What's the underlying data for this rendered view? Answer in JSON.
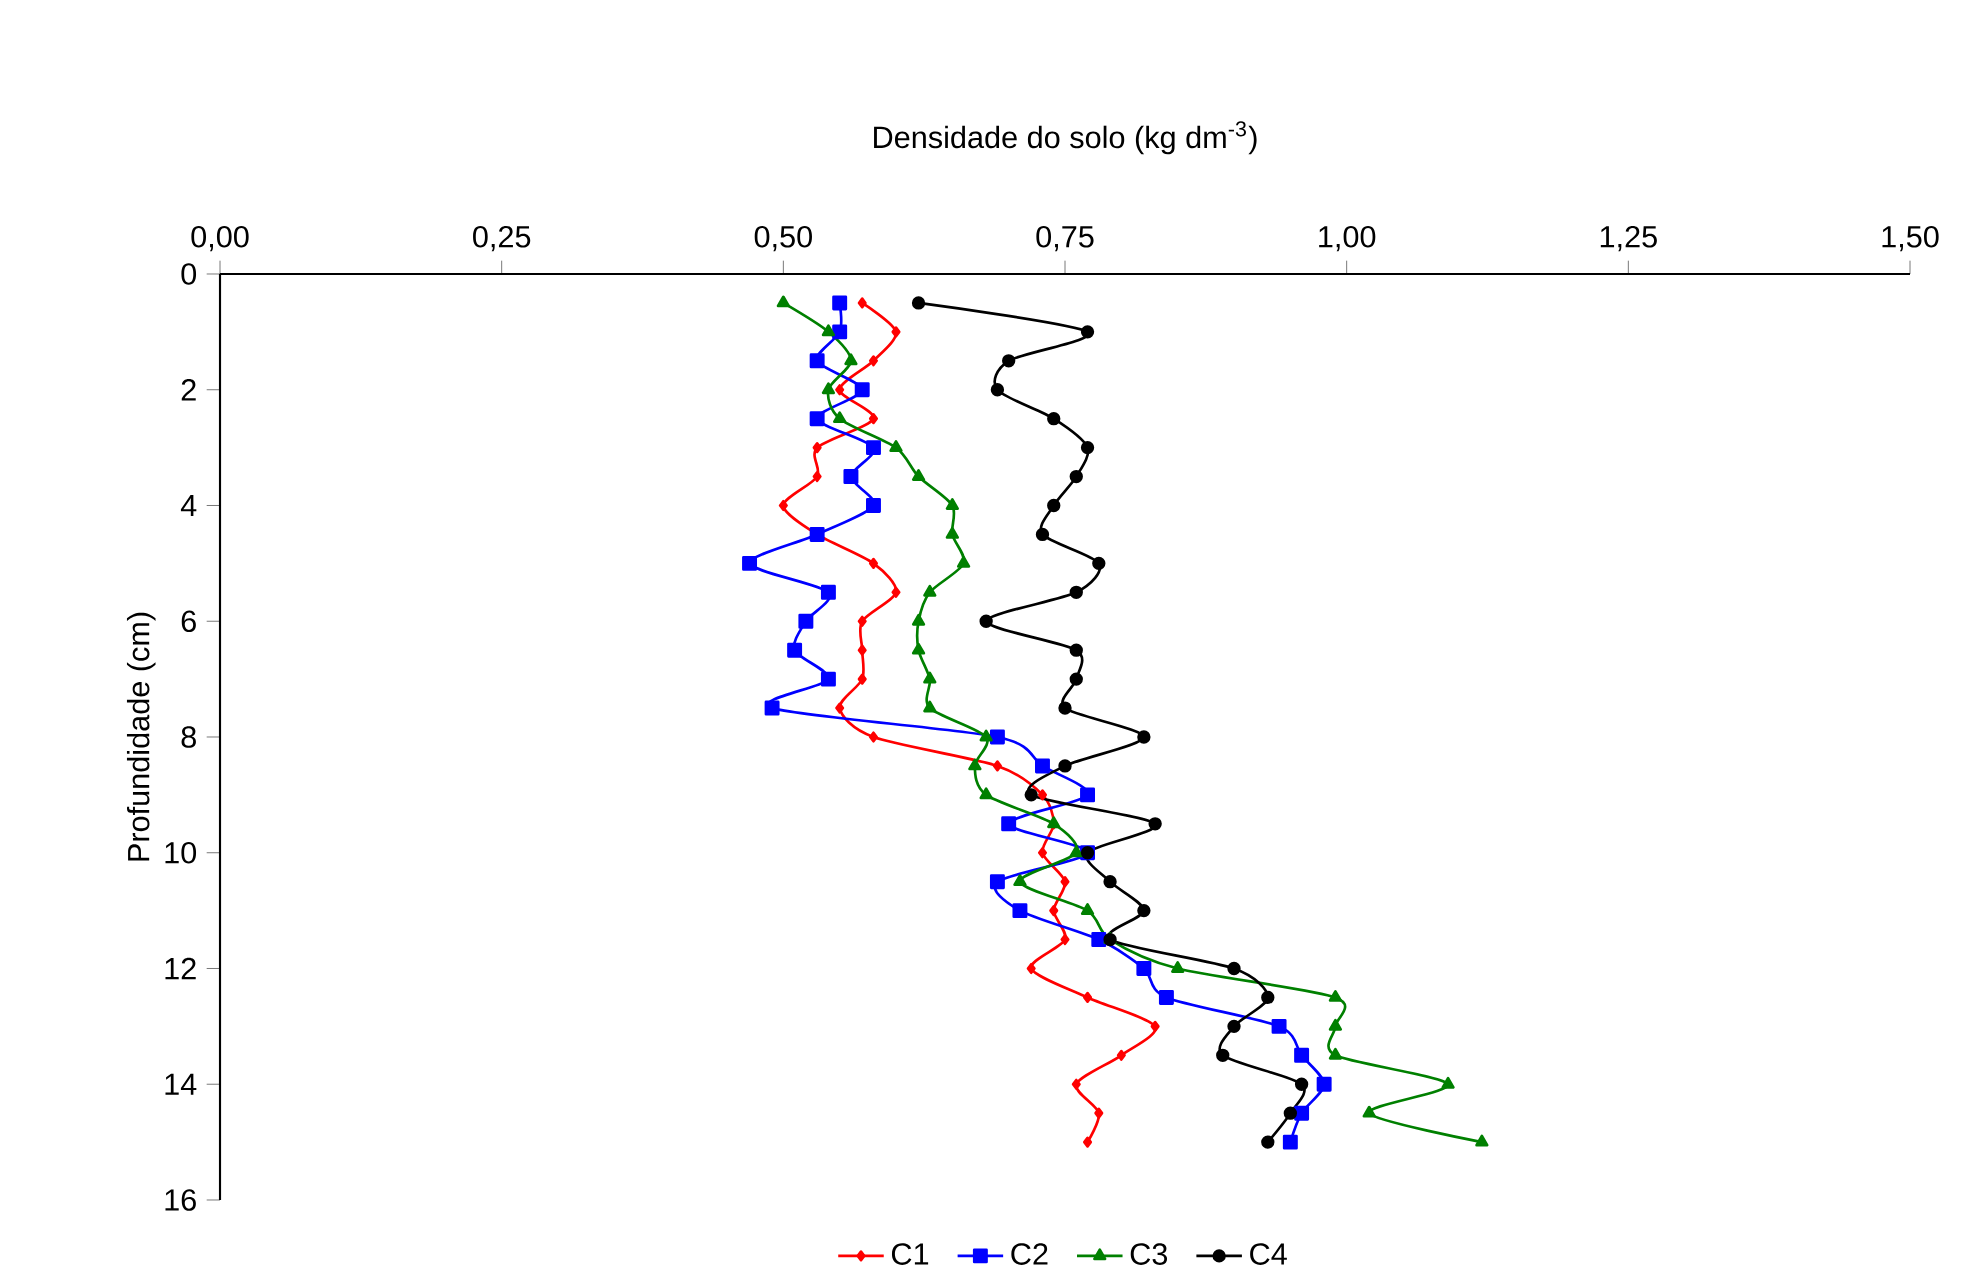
{
  "chart_data": {
    "type": "line",
    "xlabel": "Densidade do solo (kg dm$^{-3}$)",
    "ylabel": "Profundidade (cm)",
    "xlim": [
      0,
      1.5
    ],
    "ylim": [
      16,
      0
    ],
    "xticks": [
      {
        "value": 0,
        "label": "0,00"
      },
      {
        "value": 0.25,
        "label": "0,25"
      },
      {
        "value": 0.5,
        "label": "0,50"
      },
      {
        "value": 0.75,
        "label": "0,75"
      },
      {
        "value": 1,
        "label": "1,00"
      },
      {
        "value": 1.25,
        "label": "1,25"
      },
      {
        "value": 1.5,
        "label": "1,50"
      }
    ],
    "yticks": [
      0,
      2,
      4,
      6,
      8,
      10,
      12,
      14,
      16
    ],
    "legend": "bottom",
    "series": [
      {
        "name": "C1",
        "color": "#ff0000",
        "marker": "diamond",
        "x": [
          0.57,
          0.6,
          0.58,
          0.55,
          0.58,
          0.53,
          0.53,
          0.5,
          0.53,
          0.58,
          0.6,
          0.57,
          0.57,
          0.57,
          0.55,
          0.58,
          0.69,
          0.73,
          0.74,
          0.73,
          0.75,
          0.74,
          0.75,
          0.72,
          0.77,
          0.83,
          0.8,
          0.76,
          0.78,
          0.77
        ],
        "values": [
          0.5,
          1,
          1.5,
          2,
          2.5,
          3,
          3.5,
          4,
          4.5,
          5,
          5.5,
          6,
          6.5,
          7,
          7.5,
          8,
          8.5,
          9,
          9.5,
          10,
          10.5,
          11,
          11.5,
          12,
          12.5,
          13,
          13.5,
          14,
          14.5,
          15
        ]
      },
      {
        "name": "C2",
        "color": "#0000ff",
        "marker": "square",
        "x": [
          0.55,
          0.55,
          0.53,
          0.57,
          0.53,
          0.58,
          0.56,
          0.58,
          0.53,
          0.47,
          0.54,
          0.52,
          0.51,
          0.54,
          0.49,
          0.69,
          0.73,
          0.77,
          0.7,
          0.77,
          0.69,
          0.71,
          0.78,
          0.82,
          0.84,
          0.94,
          0.96,
          0.98,
          0.96,
          0.95
        ],
        "values": [
          0.5,
          1,
          1.5,
          2,
          2.5,
          3,
          3.5,
          4,
          4.5,
          5,
          5.5,
          6,
          6.5,
          7,
          7.5,
          8,
          8.5,
          9,
          9.5,
          10,
          10.5,
          11,
          11.5,
          12,
          12.5,
          13,
          13.5,
          14,
          14.5,
          15
        ]
      },
      {
        "name": "C3",
        "color": "#008000",
        "marker": "triangle",
        "x": [
          0.5,
          0.54,
          0.56,
          0.54,
          0.55,
          0.6,
          0.62,
          0.65,
          0.65,
          0.66,
          0.63,
          0.62,
          0.62,
          0.63,
          0.63,
          0.68,
          0.67,
          0.68,
          0.74,
          0.76,
          0.71,
          0.77,
          0.79,
          0.85,
          0.99,
          0.99,
          0.99,
          1.09,
          1.02,
          1.12
        ],
        "values": [
          0.5,
          1,
          1.5,
          2,
          2.5,
          3,
          3.5,
          4,
          4.5,
          5,
          5.5,
          6,
          6.5,
          7,
          7.5,
          8,
          8.5,
          9,
          9.5,
          10,
          10.5,
          11,
          11.5,
          12,
          12.5,
          13,
          13.5,
          14,
          14.5,
          15
        ]
      },
      {
        "name": "C4",
        "color": "#000000",
        "marker": "circle",
        "x": [
          0.62,
          0.77,
          0.7,
          0.69,
          0.74,
          0.77,
          0.76,
          0.74,
          0.73,
          0.78,
          0.76,
          0.68,
          0.76,
          0.76,
          0.75,
          0.82,
          0.75,
          0.72,
          0.83,
          0.77,
          0.79,
          0.82,
          0.79,
          0.9,
          0.93,
          0.9,
          0.89,
          0.96,
          0.95,
          0.93
        ],
        "values": [
          0.5,
          1,
          1.5,
          2,
          2.5,
          3,
          3.5,
          4,
          4.5,
          5,
          5.5,
          6,
          6.5,
          7,
          7.5,
          8,
          8.5,
          9,
          9.5,
          10,
          10.5,
          11,
          11.5,
          12,
          12.5,
          13,
          13.5,
          14,
          14.5,
          15
        ]
      }
    ]
  }
}
